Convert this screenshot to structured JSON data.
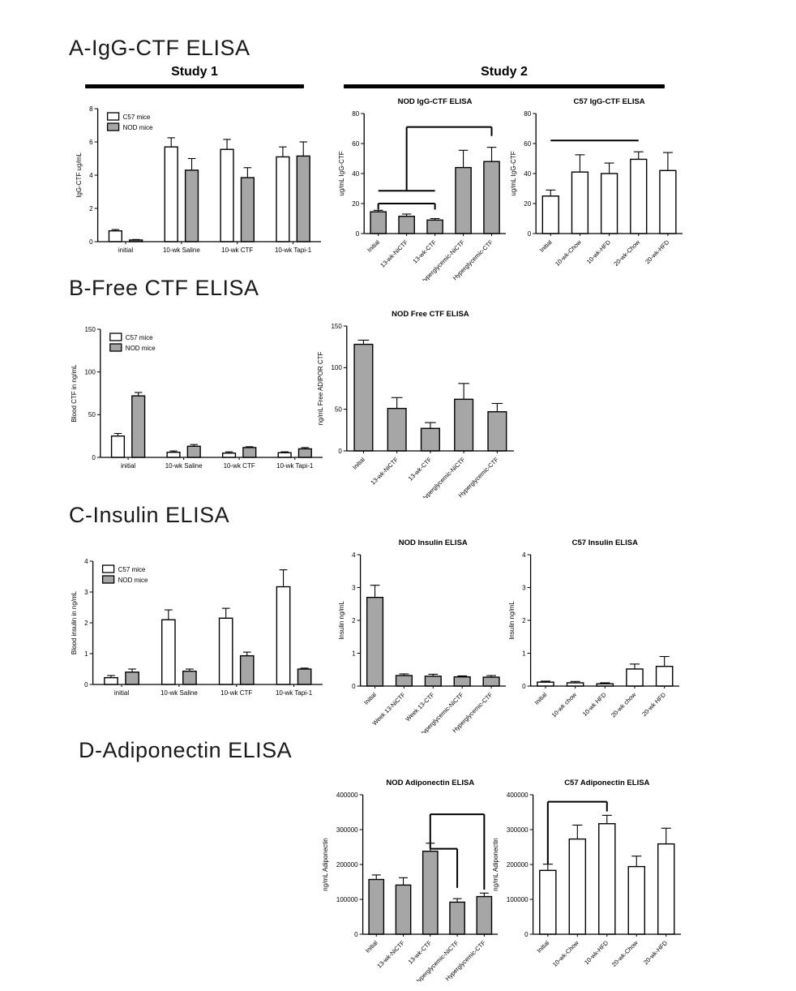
{
  "figure": {
    "sections": [
      {
        "id": "A",
        "title": "A-IgG-CTF ELISA"
      },
      {
        "id": "B",
        "title": "B-Free CTF ELISA"
      },
      {
        "id": "C",
        "title": "C-Insulin ELISA"
      },
      {
        "id": "D",
        "title": "D-Adiponectin ELISA"
      }
    ],
    "study_headers": {
      "study1": "Study 1",
      "study2": "Study 2"
    }
  },
  "colors": {
    "bar_white": "#ffffff",
    "bar_gray": "#a6a6a6",
    "axis": "#000000"
  },
  "chart_data": [
    {
      "id": "a-study1",
      "type": "bar",
      "title": "",
      "ylabel": "IgG-CTF ug/mL",
      "ylim": [
        0,
        8
      ],
      "yticks": [
        0,
        2,
        4,
        6,
        8
      ],
      "categories": [
        "initial",
        "10-wk Saline",
        "10-wk CTF",
        "10-wk Tapi-1"
      ],
      "series": [
        {
          "name": "C57 mice",
          "color": "white",
          "values": [
            0.65,
            5.7,
            5.55,
            5.1
          ],
          "errors": [
            0.08,
            0.55,
            0.6,
            0.6
          ]
        },
        {
          "name": "NOD mice",
          "color": "gray",
          "values": [
            0.1,
            4.3,
            3.85,
            5.15
          ],
          "errors": [
            0.03,
            0.7,
            0.6,
            0.85
          ]
        }
      ],
      "legend": true,
      "rotate_labels": false,
      "sig_lines": []
    },
    {
      "id": "a-nod",
      "type": "bar",
      "title": "NOD IgG-CTF ELISA",
      "ylabel": "ug/mL IgG-CTF",
      "ylim": [
        0,
        80
      ],
      "yticks": [
        0,
        20,
        40,
        60,
        80
      ],
      "categories": [
        "Initial",
        "13-wk-NiCTF",
        "13-wk-CTF",
        "Hyperglycemic-NiCTF",
        "Hyperglycemic-CTF"
      ],
      "series": [
        {
          "name": "NOD",
          "color": "gray",
          "values": [
            14.5,
            11.5,
            9,
            44,
            48
          ],
          "errors": [
            1,
            1.5,
            1,
            11.5,
            9.5
          ]
        }
      ],
      "legend": false,
      "rotate_labels": true,
      "sig_lines": [
        {
          "x1": 0,
          "y1": 20,
          "x2": 2,
          "y2": 20
        },
        {
          "x1": 0,
          "y1": 20,
          "x2": 0,
          "y2": 16
        },
        {
          "x1": 2,
          "y1": 20,
          "x2": 2,
          "y2": 16
        },
        {
          "x1": 0,
          "y1": 28.5,
          "x2": 2,
          "y2": 28.5
        },
        {
          "x1": 1,
          "y1": 28.5,
          "x2": 1,
          "y2": 71
        },
        {
          "x1": 1,
          "y1": 71,
          "x2": 4,
          "y2": 71
        },
        {
          "x1": 4,
          "y1": 71,
          "x2": 4,
          "y2": 65
        }
      ]
    },
    {
      "id": "a-c57",
      "type": "bar",
      "title": "C57 IgG-CTF ELISA",
      "ylabel": "ug/mL IgG-CTF",
      "ylim": [
        0,
        80
      ],
      "yticks": [
        0,
        20,
        40,
        60,
        80
      ],
      "categories": [
        "Initial",
        "10-wk-Chow",
        "10-wk-HFD",
        "20-wk-Chow",
        "20-wk-HFD"
      ],
      "series": [
        {
          "name": "C57",
          "color": "white",
          "values": [
            25,
            41,
            40,
            49.5,
            42
          ],
          "errors": [
            4,
            11.5,
            7,
            5,
            12
          ]
        }
      ],
      "legend": false,
      "rotate_labels": true,
      "sig_lines": [
        {
          "x1": 0,
          "y1": 62,
          "x2": 3,
          "y2": 62
        }
      ]
    },
    {
      "id": "b-study1",
      "type": "bar",
      "title": "",
      "ylabel": "Blood CTF in  ng/mL",
      "ylim": [
        0,
        150
      ],
      "yticks": [
        0,
        50,
        100,
        150
      ],
      "categories": [
        "initial",
        "10-wk Saline",
        "10-wk CTF",
        "10-wk Tapi-1"
      ],
      "series": [
        {
          "name": "C57 mice",
          "color": "white",
          "values": [
            25,
            6,
            5,
            5.5
          ],
          "errors": [
            3,
            1.5,
            1.5,
            1
          ]
        },
        {
          "name": "NOD mice",
          "color": "gray",
          "values": [
            72,
            13,
            11.5,
            10
          ],
          "errors": [
            4,
            2,
            1,
            1.5
          ]
        }
      ],
      "legend": true,
      "rotate_labels": false,
      "sig_lines": []
    },
    {
      "id": "b-nod",
      "type": "bar",
      "title": "NOD Free CTF ELISA",
      "ylabel": "ng/mL Free ADIPOR CTF",
      "ylim": [
        0,
        150
      ],
      "yticks": [
        0,
        50,
        100,
        150
      ],
      "categories": [
        "Initial",
        "13-wk-NiCTF",
        "13-wk-CTF",
        "Hyperglycemic-NiCTF",
        "Hyperglycemic-CTF"
      ],
      "series": [
        {
          "name": "NOD",
          "color": "gray",
          "values": [
            128,
            51,
            27,
            62,
            47
          ],
          "errors": [
            5,
            13,
            7,
            19,
            10
          ]
        }
      ],
      "legend": false,
      "rotate_labels": true,
      "sig_lines": []
    },
    {
      "id": "c-study1",
      "type": "bar",
      "title": "",
      "ylabel": "Blood insulin in  ng/mL",
      "ylim": [
        0,
        4
      ],
      "yticks": [
        0,
        1,
        2,
        3,
        4
      ],
      "categories": [
        "initial",
        "10-wk Saline",
        "10-wk CTF",
        "10-wk Tapi-1"
      ],
      "series": [
        {
          "name": "C57 mice",
          "color": "white",
          "values": [
            0.22,
            2.1,
            2.15,
            3.17
          ],
          "errors": [
            0.07,
            0.32,
            0.32,
            0.55
          ]
        },
        {
          "name": "NOD mice",
          "color": "gray",
          "values": [
            0.4,
            0.43,
            0.93,
            0.5
          ],
          "errors": [
            0.1,
            0.07,
            0.12,
            0.03
          ]
        }
      ],
      "legend": true,
      "rotate_labels": false,
      "sig_lines": []
    },
    {
      "id": "c-nod",
      "type": "bar",
      "title": "NOD Insulin ELISA",
      "ylabel": "Insulin ng/mL",
      "ylim": [
        0,
        4
      ],
      "yticks": [
        0,
        1,
        2,
        3,
        4
      ],
      "categories": [
        "Initial",
        "Week 13-NiCTF",
        "Week 13-CTF",
        "Hyperglycemic-NiCTF",
        "Hyperglycemic-CTF"
      ],
      "series": [
        {
          "name": "NOD",
          "color": "gray",
          "values": [
            2.7,
            0.32,
            0.3,
            0.28,
            0.27
          ],
          "errors": [
            0.37,
            0.05,
            0.06,
            0.03,
            0.05
          ]
        }
      ],
      "legend": false,
      "rotate_labels": true,
      "sig_lines": []
    },
    {
      "id": "c-c57",
      "type": "bar",
      "title": "C57 Insulin ELISA",
      "ylabel": "Insulin ng/mL",
      "ylim": [
        0,
        4
      ],
      "yticks": [
        0,
        1,
        2,
        3,
        4
      ],
      "categories": [
        "Initial",
        "10-wk chow",
        "10-wk HFD",
        "20-wk chow",
        "20-wk HFD"
      ],
      "series": [
        {
          "name": "C57",
          "color": "white",
          "values": [
            0.12,
            0.1,
            0.07,
            0.52,
            0.6
          ],
          "errors": [
            0.03,
            0.04,
            0.03,
            0.15,
            0.3
          ]
        }
      ],
      "legend": false,
      "rotate_labels": true,
      "sig_lines": []
    },
    {
      "id": "d-nod",
      "type": "bar",
      "title": "NOD Adiponectin ELISA",
      "ylabel": "ng/mL Adiponectin",
      "ylim": [
        0,
        400000
      ],
      "yticks": [
        0,
        100000,
        200000,
        300000,
        400000
      ],
      "categories": [
        "Initial",
        "13-wk-NiCTF",
        "13-wk-CTF",
        "Hyperglycemic-NiCTF",
        "Hyperglycemic-CTF"
      ],
      "series": [
        {
          "name": "NOD",
          "color": "gray",
          "values": [
            157000,
            141000,
            238000,
            92000,
            108000
          ],
          "errors": [
            13000,
            21000,
            23000,
            10000,
            10000
          ]
        }
      ],
      "legend": false,
      "rotate_labels": true,
      "sig_lines": [
        {
          "x1": 2,
          "y1": 245000,
          "x2": 2,
          "y2": 344000
        },
        {
          "x1": 2,
          "y1": 245000,
          "x2": 3,
          "y2": 245000
        },
        {
          "x1": 3,
          "y1": 245000,
          "x2": 3,
          "y2": 133000
        },
        {
          "x1": 2,
          "y1": 344000,
          "x2": 4,
          "y2": 344000
        },
        {
          "x1": 4,
          "y1": 344000,
          "x2": 4,
          "y2": 128000
        }
      ]
    },
    {
      "id": "d-c57",
      "type": "bar",
      "title": "C57 Adiponectin ELISA",
      "ylabel": "ng/mL Adiponectin",
      "ylim": [
        0,
        400000
      ],
      "yticks": [
        0,
        100000,
        200000,
        300000,
        400000
      ],
      "categories": [
        "Initial",
        "10-wk-Chow",
        "10-wk-HFD",
        "20-wk-Chow",
        "20-wk-HFD"
      ],
      "series": [
        {
          "name": "C57",
          "color": "white",
          "values": [
            183000,
            273000,
            317000,
            194000,
            259000
          ],
          "errors": [
            18000,
            40000,
            24000,
            30000,
            45000
          ]
        }
      ],
      "legend": false,
      "rotate_labels": true,
      "sig_lines": [
        {
          "x1": 0,
          "y1": 202000,
          "x2": 0,
          "y2": 380000
        },
        {
          "x1": 0,
          "y1": 380000,
          "x2": 2,
          "y2": 380000
        },
        {
          "x1": 2,
          "y1": 380000,
          "x2": 2,
          "y2": 352000
        }
      ]
    }
  ]
}
